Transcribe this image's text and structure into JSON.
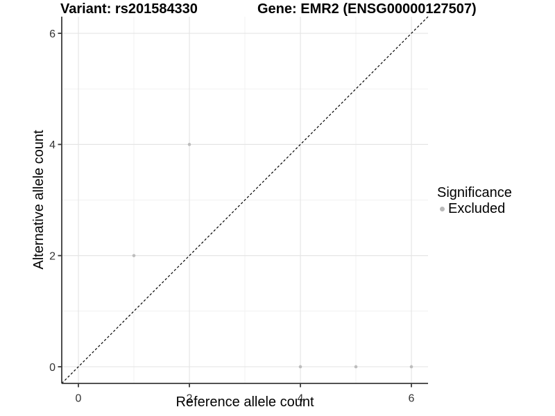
{
  "figure": {
    "title_left": "Variant: rs201584330",
    "title_right": "Gene: EMR2 (ENSG00000127507)"
  },
  "legend": {
    "title": "Significance",
    "items": [
      {
        "label": "Excluded",
        "color": "#b9b9b9"
      }
    ]
  },
  "chart_data": {
    "type": "scatter",
    "title_left": "Variant: rs201584330",
    "title_right": "Gene: EMR2 (ENSG00000127507)",
    "xlabel": "Reference allele count",
    "ylabel": "Alternative allele count",
    "xlim": [
      -0.3,
      6.3
    ],
    "ylim": [
      -0.3,
      6.3
    ],
    "x_ticks": [
      0,
      2,
      4,
      6
    ],
    "y_ticks": [
      0,
      2,
      4,
      6
    ],
    "x_minor_gridlines": [
      1,
      3,
      5
    ],
    "y_minor_gridlines": [
      1,
      3,
      5
    ],
    "grid": "on",
    "legend_position": "right",
    "series": [
      {
        "name": "Excluded",
        "marker": "circle",
        "color": "#bdbdbd",
        "points": [
          [
            1,
            2
          ],
          [
            2,
            4
          ],
          [
            4,
            0
          ],
          [
            5,
            0
          ],
          [
            6,
            0
          ]
        ]
      }
    ],
    "identity_line": {
      "slope": 1,
      "intercept": 0,
      "style": "dashed",
      "color": "#000000"
    }
  },
  "style": {
    "background": "#ffffff",
    "grid_major_color": "#e5e5e5",
    "grid_minor_color": "#f1f1f1",
    "axis_color": "#3a3a3a",
    "tick_label_color": "#333333",
    "point_color": "#bdbdbd",
    "identity_line_color": "#000000"
  }
}
